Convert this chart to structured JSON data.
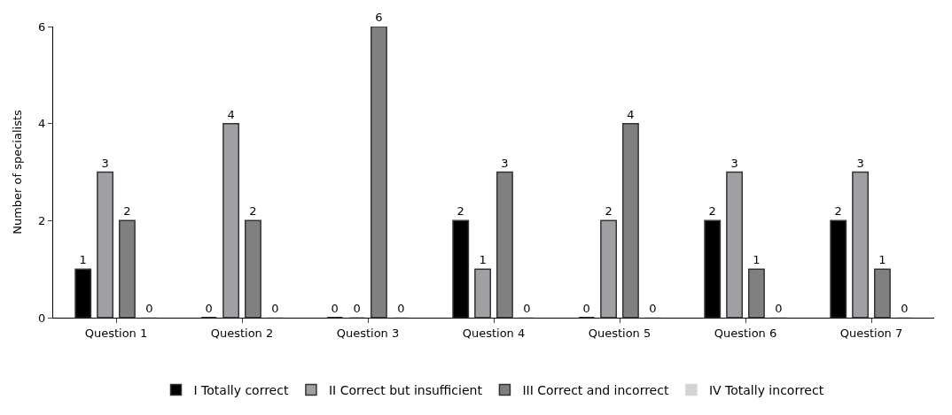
{
  "chart_data": {
    "type": "bar",
    "ylabel": "Number of specialists",
    "categories": [
      "Question 1",
      "Question 2",
      "Question 3",
      "Question 4",
      "Question 5",
      "Question 6",
      "Question 7"
    ],
    "series": [
      {
        "name": "I Totally correct",
        "color": "#000000",
        "values": [
          1,
          0,
          0,
          2,
          0,
          2,
          2
        ]
      },
      {
        "name": "II Correct but insufficient",
        "color": "#a0a0a4",
        "values": [
          3,
          4,
          0,
          1,
          2,
          3,
          3
        ]
      },
      {
        "name": "III Correct and incorrect",
        "color": "#808080",
        "values": [
          2,
          2,
          6,
          3,
          4,
          1,
          1
        ]
      },
      {
        "name": "IV Totally incorrect",
        "color": "#d4d4d4",
        "values": [
          0,
          0,
          0,
          0,
          0,
          0,
          0
        ]
      }
    ],
    "ylim": [
      0,
      6
    ],
    "yticks": [
      0,
      2,
      4,
      6
    ],
    "data_labels": true,
    "legend": "bottom"
  }
}
